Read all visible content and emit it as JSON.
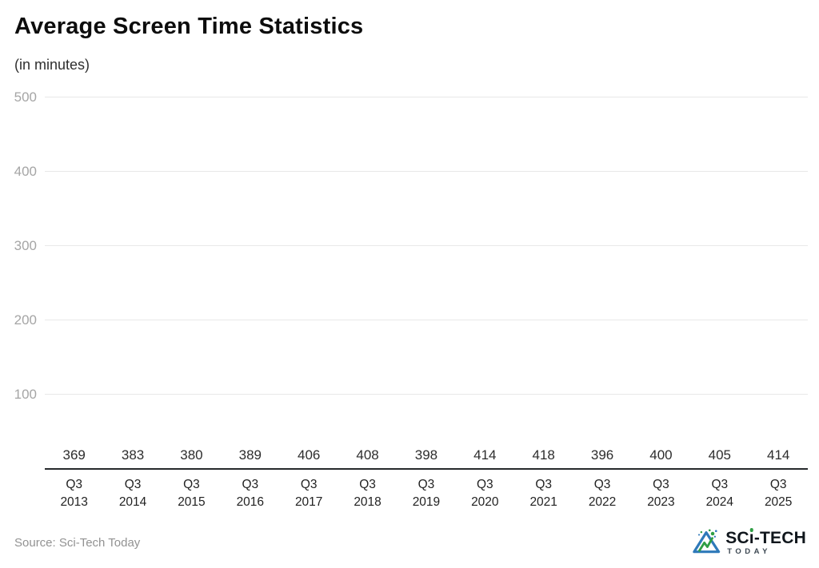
{
  "chart_data": {
    "type": "bar",
    "title": "Average Screen Time Statistics",
    "subtitle": "(in minutes)",
    "categories": [
      {
        "quarter": "Q3",
        "year": "2013"
      },
      {
        "quarter": "Q3",
        "year": "2014"
      },
      {
        "quarter": "Q3",
        "year": "2015"
      },
      {
        "quarter": "Q3",
        "year": "2016"
      },
      {
        "quarter": "Q3",
        "year": "2017"
      },
      {
        "quarter": "Q3",
        "year": "2018"
      },
      {
        "quarter": "Q3",
        "year": "2019"
      },
      {
        "quarter": "Q3",
        "year": "2020"
      },
      {
        "quarter": "Q3",
        "year": "2021"
      },
      {
        "quarter": "Q3",
        "year": "2022"
      },
      {
        "quarter": "Q3",
        "year": "2023"
      },
      {
        "quarter": "Q3",
        "year": "2024"
      },
      {
        "quarter": "Q3",
        "year": "2025"
      }
    ],
    "values": [
      369,
      383,
      380,
      389,
      406,
      408,
      398,
      414,
      418,
      396,
      400,
      405,
      414
    ],
    "y_ticks": [
      100,
      200,
      300,
      400,
      500
    ],
    "ylim": [
      0,
      500
    ],
    "xlabel": "",
    "ylabel": "",
    "grid": true,
    "legend": false,
    "bar_color": "#63c5c0"
  },
  "footer": {
    "source": "Source: Sci-Tech Today",
    "logo": {
      "line1": "SCi-TECH",
      "line2": "TODAY",
      "icon": "sci-tech-triangle-logo-icon",
      "colors": {
        "blue": "#2e79b9",
        "green": "#2f9e44",
        "text": "#10161c"
      }
    }
  }
}
